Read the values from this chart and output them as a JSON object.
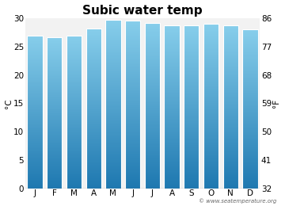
{
  "title": "Subic water temp",
  "months": [
    "J",
    "F",
    "M",
    "A",
    "M",
    "J",
    "J",
    "A",
    "S",
    "O",
    "N",
    "D"
  ],
  "values_c": [
    27.0,
    26.7,
    27.0,
    28.2,
    29.8,
    29.6,
    29.2,
    28.8,
    28.7,
    29.0,
    28.8,
    28.0
  ],
  "ylim_c": [
    0,
    30
  ],
  "yticks_c": [
    0,
    5,
    10,
    15,
    20,
    25,
    30
  ],
  "yticks_f": [
    32,
    41,
    50,
    59,
    68,
    77,
    86
  ],
  "ylabel_left": "°C",
  "ylabel_right": "°F",
  "bar_color_top": "#87ceeb",
  "bar_color_bottom": "#1e78b0",
  "bg_color": "#ffffff",
  "plot_bg_color": "#f2f2f2",
  "watermark": "© www.seatemperature.org",
  "title_fontsize": 11,
  "label_fontsize": 7.5,
  "tick_fontsize": 7.5,
  "bar_width": 0.78
}
